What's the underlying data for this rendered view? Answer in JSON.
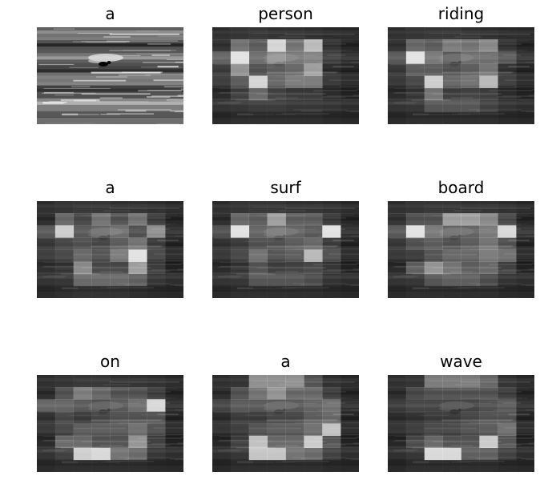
{
  "figure": {
    "panels": [
      {
        "word": "a",
        "type": "photo",
        "grid": null
      },
      {
        "word": "person",
        "type": "attention",
        "grid": [
          [
            0.08,
            0.1,
            0.12,
            0.1,
            0.1,
            0.08,
            0.06,
            0.05
          ],
          [
            0.15,
            0.45,
            0.35,
            0.9,
            0.45,
            0.78,
            0.15,
            0.08
          ],
          [
            0.35,
            0.95,
            0.4,
            0.55,
            0.45,
            0.5,
            0.18,
            0.1
          ],
          [
            0.2,
            0.6,
            0.3,
            0.35,
            0.4,
            0.65,
            0.12,
            0.08
          ],
          [
            0.15,
            0.3,
            0.88,
            0.35,
            0.45,
            0.45,
            0.12,
            0.06
          ],
          [
            0.1,
            0.2,
            0.4,
            0.22,
            0.18,
            0.18,
            0.1,
            0.05
          ],
          [
            0.08,
            0.1,
            0.12,
            0.12,
            0.1,
            0.1,
            0.08,
            0.05
          ],
          [
            0.06,
            0.08,
            0.08,
            0.08,
            0.08,
            0.08,
            0.06,
            0.05
          ]
        ]
      },
      {
        "word": "riding",
        "type": "attention",
        "grid": [
          [
            0.08,
            0.1,
            0.12,
            0.12,
            0.1,
            0.08,
            0.06,
            0.05
          ],
          [
            0.15,
            0.4,
            0.35,
            0.5,
            0.45,
            0.55,
            0.15,
            0.08
          ],
          [
            0.3,
            0.95,
            0.45,
            0.3,
            0.4,
            0.4,
            0.3,
            0.12
          ],
          [
            0.18,
            0.35,
            0.35,
            0.3,
            0.35,
            0.45,
            0.15,
            0.08
          ],
          [
            0.12,
            0.2,
            0.85,
            0.35,
            0.4,
            0.75,
            0.15,
            0.06
          ],
          [
            0.1,
            0.15,
            0.45,
            0.2,
            0.22,
            0.2,
            0.1,
            0.05
          ],
          [
            0.08,
            0.1,
            0.25,
            0.25,
            0.25,
            0.15,
            0.08,
            0.05
          ],
          [
            0.06,
            0.08,
            0.08,
            0.08,
            0.08,
            0.08,
            0.06,
            0.05
          ]
        ]
      },
      {
        "word": "a",
        "type": "attention",
        "grid": [
          [
            0.08,
            0.1,
            0.12,
            0.12,
            0.1,
            0.1,
            0.08,
            0.05
          ],
          [
            0.12,
            0.4,
            0.25,
            0.45,
            0.3,
            0.45,
            0.2,
            0.08
          ],
          [
            0.3,
            0.85,
            0.3,
            0.35,
            0.4,
            0.25,
            0.55,
            0.1
          ],
          [
            0.18,
            0.25,
            0.3,
            0.25,
            0.35,
            0.45,
            0.2,
            0.08
          ],
          [
            0.15,
            0.2,
            0.35,
            0.25,
            0.45,
            0.95,
            0.2,
            0.06
          ],
          [
            0.12,
            0.15,
            0.55,
            0.25,
            0.25,
            0.65,
            0.18,
            0.05
          ],
          [
            0.08,
            0.1,
            0.35,
            0.35,
            0.35,
            0.3,
            0.1,
            0.05
          ],
          [
            0.06,
            0.08,
            0.1,
            0.1,
            0.1,
            0.08,
            0.06,
            0.05
          ]
        ]
      },
      {
        "word": "surf",
        "type": "attention",
        "grid": [
          [
            0.08,
            0.1,
            0.12,
            0.12,
            0.1,
            0.1,
            0.08,
            0.05
          ],
          [
            0.12,
            0.4,
            0.35,
            0.65,
            0.35,
            0.35,
            0.18,
            0.08
          ],
          [
            0.25,
            0.95,
            0.35,
            0.4,
            0.35,
            0.3,
            0.95,
            0.1
          ],
          [
            0.15,
            0.2,
            0.3,
            0.3,
            0.35,
            0.4,
            0.2,
            0.08
          ],
          [
            0.12,
            0.2,
            0.4,
            0.25,
            0.3,
            0.75,
            0.25,
            0.06
          ],
          [
            0.1,
            0.15,
            0.3,
            0.2,
            0.22,
            0.25,
            0.15,
            0.05
          ],
          [
            0.08,
            0.1,
            0.25,
            0.25,
            0.25,
            0.2,
            0.08,
            0.05
          ],
          [
            0.06,
            0.08,
            0.08,
            0.08,
            0.08,
            0.08,
            0.06,
            0.05
          ]
        ]
      },
      {
        "word": "board",
        "type": "attention",
        "grid": [
          [
            0.08,
            0.1,
            0.12,
            0.12,
            0.1,
            0.1,
            0.08,
            0.05
          ],
          [
            0.15,
            0.3,
            0.3,
            0.65,
            0.65,
            0.55,
            0.25,
            0.08
          ],
          [
            0.3,
            0.95,
            0.45,
            0.35,
            0.35,
            0.45,
            0.9,
            0.12
          ],
          [
            0.18,
            0.3,
            0.35,
            0.3,
            0.35,
            0.45,
            0.3,
            0.08
          ],
          [
            0.12,
            0.15,
            0.25,
            0.35,
            0.35,
            0.45,
            0.4,
            0.06
          ],
          [
            0.1,
            0.35,
            0.6,
            0.45,
            0.35,
            0.4,
            0.2,
            0.05
          ],
          [
            0.08,
            0.1,
            0.25,
            0.3,
            0.3,
            0.2,
            0.08,
            0.05
          ],
          [
            0.06,
            0.08,
            0.08,
            0.08,
            0.08,
            0.08,
            0.06,
            0.05
          ]
        ]
      },
      {
        "word": "on",
        "type": "attention",
        "grid": [
          [
            0.08,
            0.1,
            0.12,
            0.12,
            0.1,
            0.1,
            0.08,
            0.05
          ],
          [
            0.12,
            0.3,
            0.5,
            0.4,
            0.3,
            0.3,
            0.2,
            0.08
          ],
          [
            0.35,
            0.35,
            0.3,
            0.25,
            0.3,
            0.4,
            0.9,
            0.1
          ],
          [
            0.15,
            0.25,
            0.2,
            0.25,
            0.3,
            0.3,
            0.3,
            0.08
          ],
          [
            0.12,
            0.2,
            0.3,
            0.3,
            0.3,
            0.4,
            0.25,
            0.06
          ],
          [
            0.1,
            0.4,
            0.4,
            0.3,
            0.3,
            0.6,
            0.2,
            0.05
          ],
          [
            0.08,
            0.15,
            0.85,
            0.9,
            0.4,
            0.35,
            0.1,
            0.05
          ],
          [
            0.06,
            0.08,
            0.08,
            0.08,
            0.08,
            0.08,
            0.06,
            0.05
          ]
        ]
      },
      {
        "word": "a",
        "type": "attention",
        "grid": [
          [
            0.08,
            0.1,
            0.55,
            0.55,
            0.55,
            0.25,
            0.08,
            0.05
          ],
          [
            0.12,
            0.3,
            0.45,
            0.6,
            0.4,
            0.4,
            0.2,
            0.08
          ],
          [
            0.2,
            0.3,
            0.3,
            0.3,
            0.3,
            0.35,
            0.4,
            0.1
          ],
          [
            0.12,
            0.2,
            0.2,
            0.25,
            0.25,
            0.35,
            0.4,
            0.08
          ],
          [
            0.1,
            0.15,
            0.25,
            0.3,
            0.3,
            0.4,
            0.8,
            0.06
          ],
          [
            0.08,
            0.2,
            0.8,
            0.4,
            0.4,
            0.85,
            0.3,
            0.05
          ],
          [
            0.06,
            0.1,
            0.8,
            0.8,
            0.4,
            0.35,
            0.15,
            0.05
          ],
          [
            0.05,
            0.08,
            0.08,
            0.08,
            0.08,
            0.08,
            0.06,
            0.05
          ]
        ]
      },
      {
        "word": "wave",
        "type": "attention",
        "grid": [
          [
            0.08,
            0.1,
            0.45,
            0.45,
            0.45,
            0.35,
            0.1,
            0.05
          ],
          [
            0.12,
            0.25,
            0.3,
            0.3,
            0.3,
            0.3,
            0.2,
            0.08
          ],
          [
            0.15,
            0.2,
            0.2,
            0.2,
            0.2,
            0.25,
            0.3,
            0.1
          ],
          [
            0.12,
            0.15,
            0.2,
            0.2,
            0.25,
            0.3,
            0.3,
            0.08
          ],
          [
            0.1,
            0.15,
            0.2,
            0.2,
            0.25,
            0.3,
            0.4,
            0.06
          ],
          [
            0.08,
            0.25,
            0.4,
            0.3,
            0.3,
            0.85,
            0.3,
            0.05
          ],
          [
            0.06,
            0.1,
            0.9,
            0.9,
            0.3,
            0.3,
            0.15,
            0.05
          ],
          [
            0.05,
            0.08,
            0.08,
            0.08,
            0.08,
            0.08,
            0.06,
            0.05
          ]
        ]
      }
    ]
  }
}
